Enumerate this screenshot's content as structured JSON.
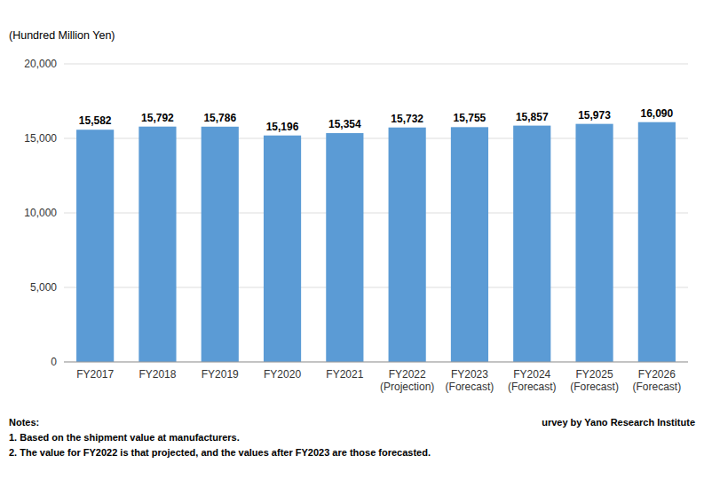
{
  "chart_data": {
    "type": "bar",
    "ylabel": "(Hundred Million  Yen)",
    "categories": [
      "FY2017",
      "FY2018",
      "FY2019",
      "FY2020",
      "FY2021",
      "FY2022\n(Projection)",
      "FY2023\n(Forecast)",
      "FY2024\n(Forecast)",
      "FY2025\n(Forecast)",
      "FY2026\n(Forecast)"
    ],
    "values": [
      15582,
      15792,
      15786,
      15196,
      15354,
      15732,
      15755,
      15857,
      15973,
      16090
    ],
    "value_labels": [
      "15,582",
      "15,792",
      "15,786",
      "15,196",
      "15,354",
      "15,732",
      "15,755",
      "15,857",
      "15,973",
      "16,090"
    ],
    "data_labels": true,
    "color": "#5B9BD5",
    "ylim": [
      0,
      20000
    ],
    "yticks": [
      0,
      {
        "value": 5000,
        "label": "5,000"
      },
      {
        "value": 10000,
        "label": "10,000"
      },
      {
        "value": 15000,
        "label": "15,000"
      },
      {
        "value": 20000,
        "label": "20,000"
      }
    ],
    "grid": true,
    "annotations": [
      "Notes:\n1. Based on the shipment value at manufacturers.\n2. The value for FY2022 is that projected, and the values after FY2023 are those forecasted.",
      "urvey by Yano Research Institute"
    ]
  }
}
